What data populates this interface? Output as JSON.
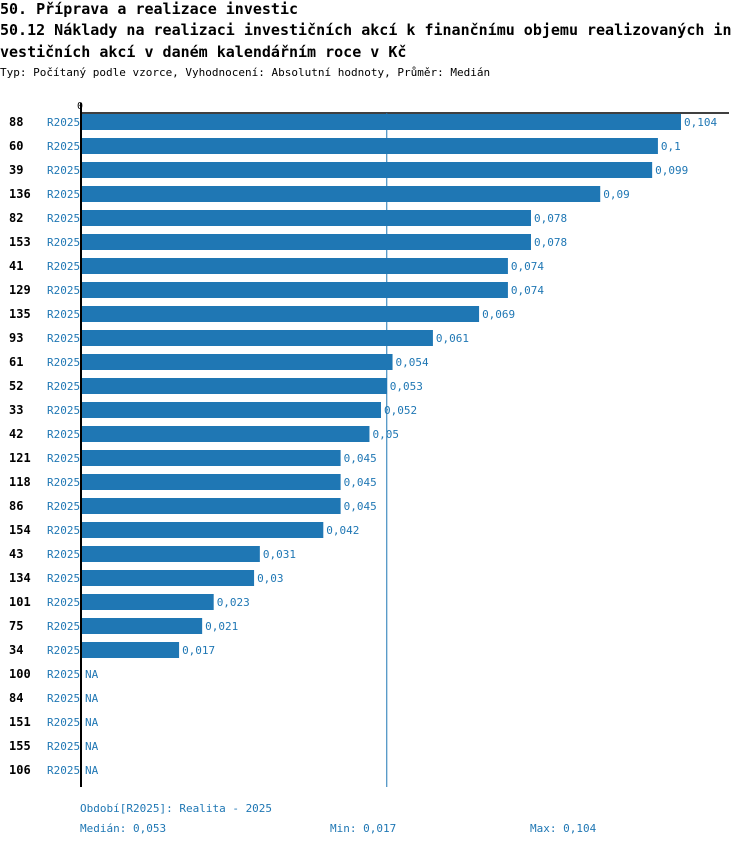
{
  "title": {
    "line1": "50. Příprava a realizace investic",
    "line2": "50.12 Náklady na realizaci investičních akcí k finančnímu objemu realizovaných in",
    "line3": "vestičních akcí v daném kalendářním roce v Kč"
  },
  "subtitle": "Typ: Počítaný podle vzorce, Vyhodnocení: Absolutní hodnoty, Průměr: Medián",
  "chart_data": {
    "type": "bar",
    "orientation": "horizontal",
    "axis_min_label": "0",
    "xlim": [
      0,
      0.104
    ],
    "median_line": 0.053,
    "colors": {
      "bar": "#1f77b4",
      "label": "#1f77b4",
      "median_line": "#1f77b4",
      "axis": "#000000"
    },
    "rows": [
      {
        "id": "88",
        "period": "R2025",
        "value": 0.104,
        "label": "0,104"
      },
      {
        "id": "60",
        "period": "R2025",
        "value": 0.1,
        "label": "0,1"
      },
      {
        "id": "39",
        "period": "R2025",
        "value": 0.099,
        "label": "0,099"
      },
      {
        "id": "136",
        "period": "R2025",
        "value": 0.09,
        "label": "0,09"
      },
      {
        "id": "82",
        "period": "R2025",
        "value": 0.078,
        "label": "0,078"
      },
      {
        "id": "153",
        "period": "R2025",
        "value": 0.078,
        "label": "0,078"
      },
      {
        "id": "41",
        "period": "R2025",
        "value": 0.074,
        "label": "0,074"
      },
      {
        "id": "129",
        "period": "R2025",
        "value": 0.074,
        "label": "0,074"
      },
      {
        "id": "135",
        "period": "R2025",
        "value": 0.069,
        "label": "0,069"
      },
      {
        "id": "93",
        "period": "R2025",
        "value": 0.061,
        "label": "0,061"
      },
      {
        "id": "61",
        "period": "R2025",
        "value": 0.054,
        "label": "0,054"
      },
      {
        "id": "52",
        "period": "R2025",
        "value": 0.053,
        "label": "0,053"
      },
      {
        "id": "33",
        "period": "R2025",
        "value": 0.052,
        "label": "0,052"
      },
      {
        "id": "42",
        "period": "R2025",
        "value": 0.05,
        "label": "0,05"
      },
      {
        "id": "121",
        "period": "R2025",
        "value": 0.045,
        "label": "0,045"
      },
      {
        "id": "118",
        "period": "R2025",
        "value": 0.045,
        "label": "0,045"
      },
      {
        "id": "86",
        "period": "R2025",
        "value": 0.045,
        "label": "0,045"
      },
      {
        "id": "154",
        "period": "R2025",
        "value": 0.042,
        "label": "0,042"
      },
      {
        "id": "43",
        "period": "R2025",
        "value": 0.031,
        "label": "0,031"
      },
      {
        "id": "134",
        "period": "R2025",
        "value": 0.03,
        "label": "0,03"
      },
      {
        "id": "101",
        "period": "R2025",
        "value": 0.023,
        "label": "0,023"
      },
      {
        "id": "75",
        "period": "R2025",
        "value": 0.021,
        "label": "0,021"
      },
      {
        "id": "34",
        "period": "R2025",
        "value": 0.017,
        "label": "0,017"
      },
      {
        "id": "100",
        "period": "R2025",
        "value": null,
        "label": "NA"
      },
      {
        "id": "84",
        "period": "R2025",
        "value": null,
        "label": "NA"
      },
      {
        "id": "151",
        "period": "R2025",
        "value": null,
        "label": "NA"
      },
      {
        "id": "155",
        "period": "R2025",
        "value": null,
        "label": "NA"
      },
      {
        "id": "106",
        "period": "R2025",
        "value": null,
        "label": "NA"
      }
    ]
  },
  "footer": {
    "period": "Období[R2025]: Realita - 2025",
    "median": "Medián: 0,053",
    "min": "Min: 0,017",
    "max": "Max: 0,104"
  }
}
